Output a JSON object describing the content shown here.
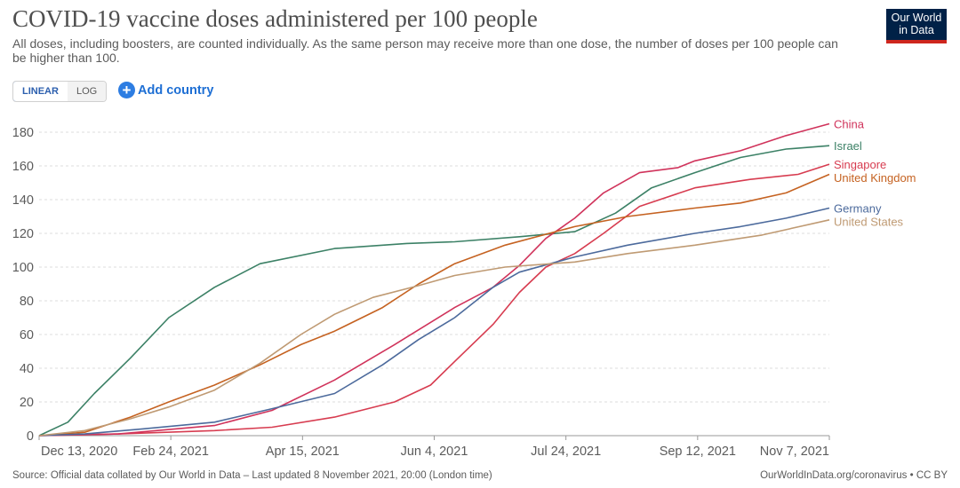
{
  "header": {
    "title": "COVID-19 vaccine doses administered per 100 people",
    "subtitle": "All doses, including boosters, are counted individually. As the same person may receive more than one dose, the number of doses per 100 people can be higher than 100."
  },
  "logo": {
    "line1": "Our World",
    "line2": "in Data"
  },
  "controls": {
    "linear_label": "LINEAR",
    "log_label": "LOG",
    "add_country_label": "Add country",
    "add_icon": "plus-icon"
  },
  "footer": {
    "source": "Source: Official data collated by Our World in Data – Last updated 8 November 2021, 20:00 (London time)",
    "credit": "OurWorldInData.org/coronavirus • CC BY"
  },
  "chart_data": {
    "type": "line",
    "title": "COVID-19 vaccine doses administered per 100 people",
    "xlabel": "",
    "ylabel": "",
    "x_ticks": [
      "Dec 13, 2020",
      "Feb 24, 2021",
      "Apr 15, 2021",
      "Jun 4, 2021",
      "Jul 24, 2021",
      "Sep 12, 2021",
      "Nov 7, 2021"
    ],
    "y_ticks": [
      0,
      20,
      40,
      60,
      80,
      100,
      120,
      140,
      160,
      180
    ],
    "ylim": [
      0,
      190
    ],
    "xlim": [
      "2020-12-13",
      "2021-11-07"
    ],
    "grid": "horizontal-dashed",
    "legend": "end-of-line labels, right",
    "series": [
      {
        "name": "Singapore",
        "color": "#d73c50",
        "points": [
          [
            "2020-12-13",
            0
          ],
          [
            "2021-01-15",
            1
          ],
          [
            "2021-02-24",
            3
          ],
          [
            "2021-03-20",
            5
          ],
          [
            "2021-04-15",
            11
          ],
          [
            "2021-05-10",
            20
          ],
          [
            "2021-05-25",
            30
          ],
          [
            "2021-06-04",
            44
          ],
          [
            "2021-06-20",
            66
          ],
          [
            "2021-07-01",
            85
          ],
          [
            "2021-07-12",
            100
          ],
          [
            "2021-07-24",
            108
          ],
          [
            "2021-08-05",
            120
          ],
          [
            "2021-08-20",
            136
          ],
          [
            "2021-09-12",
            147
          ],
          [
            "2021-10-05",
            152
          ],
          [
            "2021-10-25",
            155
          ],
          [
            "2021-11-07",
            161
          ]
        ]
      },
      {
        "name": "Israel",
        "color": "#3c8166",
        "points": [
          [
            "2020-12-13",
            0
          ],
          [
            "2020-12-25",
            8
          ],
          [
            "2021-01-05",
            25
          ],
          [
            "2021-01-20",
            46
          ],
          [
            "2021-02-05",
            70
          ],
          [
            "2021-02-24",
            88
          ],
          [
            "2021-03-15",
            102
          ],
          [
            "2021-04-15",
            111
          ],
          [
            "2021-05-15",
            114
          ],
          [
            "2021-06-04",
            115
          ],
          [
            "2021-07-01",
            118
          ],
          [
            "2021-07-24",
            121
          ],
          [
            "2021-08-10",
            132
          ],
          [
            "2021-08-25",
            147
          ],
          [
            "2021-09-12",
            156
          ],
          [
            "2021-10-01",
            165
          ],
          [
            "2021-10-20",
            170
          ],
          [
            "2021-11-07",
            172
          ]
        ]
      },
      {
        "name": "China",
        "color": "#d0335b",
        "points": [
          [
            "2020-12-13",
            0
          ],
          [
            "2021-01-15",
            1
          ],
          [
            "2021-02-24",
            6
          ],
          [
            "2021-03-20",
            15
          ],
          [
            "2021-04-15",
            33
          ],
          [
            "2021-05-10",
            54
          ],
          [
            "2021-06-04",
            76
          ],
          [
            "2021-06-20",
            88
          ],
          [
            "2021-07-01",
            101
          ],
          [
            "2021-07-12",
            117
          ],
          [
            "2021-07-24",
            129
          ],
          [
            "2021-08-05",
            144
          ],
          [
            "2021-08-20",
            156
          ],
          [
            "2021-09-05",
            159
          ],
          [
            "2021-09-12",
            163
          ],
          [
            "2021-10-01",
            169
          ],
          [
            "2021-10-20",
            178
          ],
          [
            "2021-11-07",
            185
          ]
        ]
      },
      {
        "name": "United Kingdom",
        "color": "#c56221",
        "points": [
          [
            "2020-12-13",
            0
          ],
          [
            "2021-01-01",
            2
          ],
          [
            "2021-01-20",
            11
          ],
          [
            "2021-02-05",
            20
          ],
          [
            "2021-02-24",
            30
          ],
          [
            "2021-03-15",
            42
          ],
          [
            "2021-04-01",
            54
          ],
          [
            "2021-04-15",
            62
          ],
          [
            "2021-05-05",
            76
          ],
          [
            "2021-05-20",
            90
          ],
          [
            "2021-06-04",
            102
          ],
          [
            "2021-06-25",
            113
          ],
          [
            "2021-07-24",
            124
          ],
          [
            "2021-08-15",
            130
          ],
          [
            "2021-09-12",
            135
          ],
          [
            "2021-10-01",
            138
          ],
          [
            "2021-10-20",
            144
          ],
          [
            "2021-11-07",
            155
          ]
        ]
      },
      {
        "name": "Germany",
        "color": "#4c6a9c",
        "points": [
          [
            "2020-12-13",
            0
          ],
          [
            "2021-01-01",
            1
          ],
          [
            "2021-01-25",
            4
          ],
          [
            "2021-02-24",
            8
          ],
          [
            "2021-03-20",
            16
          ],
          [
            "2021-04-15",
            25
          ],
          [
            "2021-05-05",
            42
          ],
          [
            "2021-05-20",
            57
          ],
          [
            "2021-06-04",
            70
          ],
          [
            "2021-06-20",
            88
          ],
          [
            "2021-07-01",
            97
          ],
          [
            "2021-07-24",
            106
          ],
          [
            "2021-08-15",
            113
          ],
          [
            "2021-09-12",
            120
          ],
          [
            "2021-10-01",
            124
          ],
          [
            "2021-10-20",
            129
          ],
          [
            "2021-11-07",
            135
          ]
        ]
      },
      {
        "name": "United States",
        "color": "#bf9a73",
        "points": [
          [
            "2020-12-13",
            0
          ],
          [
            "2021-01-01",
            3
          ],
          [
            "2021-01-20",
            10
          ],
          [
            "2021-02-05",
            17
          ],
          [
            "2021-02-24",
            27
          ],
          [
            "2021-03-15",
            43
          ],
          [
            "2021-04-01",
            60
          ],
          [
            "2021-04-15",
            72
          ],
          [
            "2021-05-01",
            82
          ],
          [
            "2021-05-20",
            89
          ],
          [
            "2021-06-04",
            95
          ],
          [
            "2021-06-25",
            100
          ],
          [
            "2021-07-24",
            103
          ],
          [
            "2021-08-15",
            108
          ],
          [
            "2021-09-12",
            113
          ],
          [
            "2021-10-10",
            119
          ],
          [
            "2021-11-07",
            128
          ]
        ]
      }
    ]
  }
}
